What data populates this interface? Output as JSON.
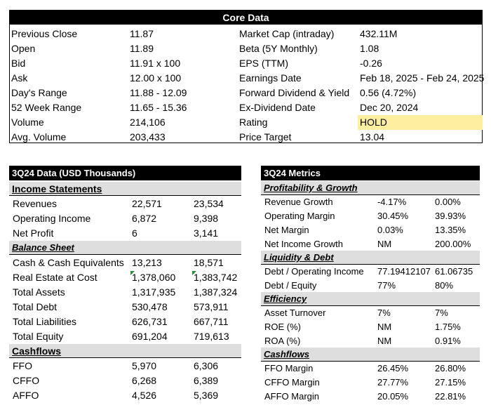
{
  "core": {
    "title": "Core Data",
    "rows": [
      {
        "l1": "Previous Close",
        "v1": "11.87",
        "l2": "Market Cap (intraday)",
        "v2": "432.11M"
      },
      {
        "l1": "Open",
        "v1": "11.89",
        "l2": "Beta (5Y Monthly)",
        "v2": "1.08"
      },
      {
        "l1": "Bid",
        "v1": "11.91 x 100",
        "l2": "EPS (TTM)",
        "v2": "-0.26"
      },
      {
        "l1": "Ask",
        "v1": "12.00 x 100",
        "l2": "Earnings Date",
        "v2": "Feb 18, 2025 - Feb 24, 2025"
      },
      {
        "l1": "Day's Range",
        "v1": "11.88 - 12.09",
        "l2": "Forward Dividend & Yield",
        "v2": "0.56 (4.72%)"
      },
      {
        "l1": "52 Week Range",
        "v1": "11.65 - 15.36",
        "l2": "Ex-Dividend Date",
        "v2": "Dec 20, 2024"
      },
      {
        "l1": "Volume",
        "v1": "214,106",
        "l2": "Rating",
        "v2": "HOLD"
      },
      {
        "l1": "Avg. Volume",
        "v1": "203,433",
        "l2": "Price Target",
        "v2": "13.04"
      }
    ],
    "rating_color": "#fdeea0"
  },
  "data3q": {
    "title": "3Q24 Data (USD Thousands)",
    "income": {
      "label": "Income Statements",
      "rows": [
        {
          "name": "Revenues",
          "a": "22,571",
          "b": "23,534"
        },
        {
          "name": "Operating Income",
          "a": "6,872",
          "b": "9,398"
        },
        {
          "name": "Net Profit",
          "a": "6",
          "b": "3,141"
        }
      ]
    },
    "balance": {
      "label": "Balance Sheet",
      "rows": [
        {
          "name": "Cash & Cash Equivalents",
          "a": "13,213",
          "b": "18,571"
        },
        {
          "name": "Real Estate at Cost",
          "a": "1,378,060",
          "b": "1,383,742"
        },
        {
          "name": "Total Assets",
          "a": "1,317,935",
          "b": "1,387,324"
        },
        {
          "name": "Total Debt",
          "a": "530,478",
          "b": "573,911"
        },
        {
          "name": "Total Liabilities",
          "a": "626,731",
          "b": "667,711"
        },
        {
          "name": "Total Equity",
          "a": "691,204",
          "b": "719,613"
        }
      ]
    },
    "cashflows": {
      "label": "Cashflows",
      "rows": [
        {
          "name": "FFO",
          "a": "5,970",
          "b": "6,306"
        },
        {
          "name": "CFFO",
          "a": "6,268",
          "b": "6,389"
        },
        {
          "name": "AFFO",
          "a": "4,526",
          "b": "5,369"
        }
      ]
    }
  },
  "metrics": {
    "title": "3Q24 Metrics",
    "profit": {
      "label": "Profitability & Growth",
      "rows": [
        {
          "name": "Revenue Growth",
          "a": "-4.17%",
          "b": "0.00%"
        },
        {
          "name": "Operating Margin",
          "a": "30.45%",
          "b": "39.93%"
        },
        {
          "name": "Net Margin",
          "a": "0.03%",
          "b": "13.35%"
        },
        {
          "name": "Net Income Growth",
          "a": "NM",
          "b": "200.00%"
        }
      ]
    },
    "liquidity": {
      "label": "Liquidity & Debt",
      "rows": [
        {
          "name": "Debt / Operating Income",
          "a": "77.19412107",
          "b": "61.06735"
        },
        {
          "name": "Debt / Equity",
          "a": "77%",
          "b": "80%"
        }
      ]
    },
    "efficiency": {
      "label": "Efficiency",
      "rows": [
        {
          "name": "Asset Turnover",
          "a": "7%",
          "b": "7%"
        },
        {
          "name": "ROE (%)",
          "a": "NM",
          "b": "1.75%"
        },
        {
          "name": "ROA (%)",
          "a": "NM",
          "b": "0.91%"
        }
      ]
    },
    "cashflows": {
      "label": "Cashflows",
      "rows": [
        {
          "name": "FFO Margin",
          "a": "26.45%",
          "b": "26.80%"
        },
        {
          "name": "CFFO Margin",
          "a": "27.77%",
          "b": "27.15%"
        },
        {
          "name": "AFFO Margin",
          "a": "20.05%",
          "b": "22.81%"
        }
      ]
    }
  }
}
